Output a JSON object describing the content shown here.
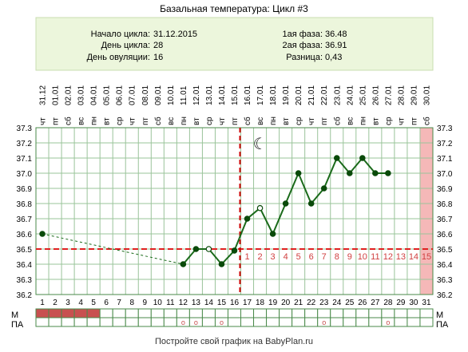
{
  "title": "Базальная температура: Цикл #3",
  "info": {
    "left": [
      {
        "label": "Начало цикла:",
        "value": "31.12.2015"
      },
      {
        "label": "День цикла:",
        "value": "28"
      },
      {
        "label": "День овуляции:",
        "value": "16"
      }
    ],
    "right": [
      {
        "label": "1ая фаза:",
        "value": "36.48"
      },
      {
        "label": "2ая фаза:",
        "value": "36.91"
      },
      {
        "label": "Разница:",
        "value": "0,43"
      }
    ]
  },
  "footer": "Постройте свой график на BabyPlan.ru",
  "row_labels": {
    "m": "М",
    "pa": "ПА"
  },
  "colors": {
    "line": "#1a6a1a",
    "marker": "#0a4a0a",
    "grid": "#9ac49a",
    "axis_border": "#4a8a4a",
    "coverline": "#e02020",
    "ovulation": "#cc0000",
    "phase2_numbers": "#d04040",
    "header_bg": "#ecf6dc",
    "highlight_bg": "#f5b8b8",
    "menstruation": "#c85050"
  },
  "chart_data": {
    "type": "line",
    "y_ticks": [
      "36.2",
      "36.3",
      "36.4",
      "36.5",
      "36.6",
      "36.7",
      "36.8",
      "36.9",
      "37.0",
      "37.1",
      "37.2",
      "37.3"
    ],
    "ylim": [
      36.2,
      37.3
    ],
    "x_days": [
      "1",
      "2",
      "3",
      "4",
      "5",
      "6",
      "7",
      "8",
      "9",
      "10",
      "11",
      "12",
      "13",
      "14",
      "15",
      "16",
      "17",
      "18",
      "19",
      "20",
      "21",
      "22",
      "23",
      "24",
      "25",
      "26",
      "27",
      "28",
      "29",
      "30",
      "31"
    ],
    "x_dates": [
      "31.12",
      "01.01",
      "02.01",
      "03.01",
      "04.01",
      "05.01",
      "06.01",
      "07.01",
      "08.01",
      "09.01",
      "10.01",
      "11.01",
      "12.01",
      "13.01",
      "14.01",
      "15.01",
      "16.01",
      "17.01",
      "18.01",
      "19.01",
      "20.01",
      "21.01",
      "22.01",
      "23.01",
      "24.01",
      "25.01",
      "26.01",
      "27.01",
      "28.01",
      "29.01",
      "30.01"
    ],
    "x_weekdays": [
      "чт",
      "пт",
      "сб",
      "вс",
      "пн",
      "вт",
      "ср",
      "чт",
      "пт",
      "сб",
      "вс",
      "пн",
      "вт",
      "ср",
      "чт",
      "пт",
      "сб",
      "вс",
      "пн",
      "вт",
      "ср",
      "чт",
      "пт",
      "сб",
      "вс",
      "пн",
      "вт",
      "ср",
      "чт",
      "пт",
      "сб"
    ],
    "series": [
      {
        "values": [
          {
            "day": 1,
            "temp": 36.6
          },
          {
            "day": 12,
            "temp": 36.4
          },
          {
            "day": 13,
            "temp": 36.5
          },
          {
            "day": 14,
            "temp": 36.5
          },
          {
            "day": 15,
            "temp": 36.4
          },
          {
            "day": 16,
            "temp": 36.49
          },
          {
            "day": 17,
            "temp": 36.7
          },
          {
            "day": 18,
            "temp": 36.77
          },
          {
            "day": 19,
            "temp": 36.6
          },
          {
            "day": 20,
            "temp": 36.8
          },
          {
            "day": 21,
            "temp": 37.0
          },
          {
            "day": 22,
            "temp": 36.8
          },
          {
            "day": 23,
            "temp": 36.9
          },
          {
            "day": 24,
            "temp": 37.1
          },
          {
            "day": 25,
            "temp": 37.0
          },
          {
            "day": 26,
            "temp": 37.1
          },
          {
            "day": 27,
            "temp": 37.0
          },
          {
            "day": 28,
            "temp": 37.0
          }
        ]
      }
    ],
    "hollow_days": [
      14,
      18
    ],
    "dashed_segment_days": [
      1,
      12
    ],
    "coverline": 36.5,
    "ovulation_day": 16,
    "phase2_numbers": [
      "1",
      "2",
      "3",
      "4",
      "5",
      "6",
      "7",
      "8",
      "9",
      "10",
      "11",
      "12",
      "13",
      "14",
      "15"
    ],
    "highlight_day": 31,
    "moon_day": 18,
    "menstruation_days": [
      1,
      2,
      3,
      4,
      5
    ],
    "pa_marker_days": [
      12,
      13,
      15,
      23,
      28
    ],
    "pa_marker_symbol": "o"
  }
}
